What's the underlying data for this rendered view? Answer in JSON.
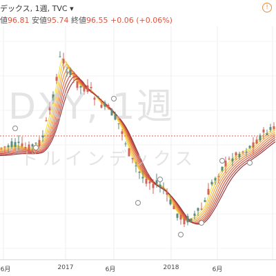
{
  "header": {
    "symbol_text": "デックス, 1週, TVC",
    "dropdown_icon": "chevron-down-icon",
    "low_label": "値",
    "open_value": "96.81",
    "low_label2": "安値",
    "low_value": "95.74",
    "close_label": "終値",
    "close_value": "96.55",
    "change": "+0.06 (+0.06%)"
  },
  "watermark": {
    "main": "DXY, 1週",
    "sub": "ドルインデックス"
  },
  "alert_icon": "info-icon",
  "chart_data": {
    "type": "candlestick",
    "x_ticks": [
      "6月",
      "2017",
      "6月",
      "2018",
      "6月"
    ],
    "current_price_line": 96.55,
    "colors": {
      "up": "#5b8a7e",
      "down": "#d2645a",
      "ribbon": [
        "#f4e04d",
        "#f3c64a",
        "#f0a948",
        "#ea8c46",
        "#df7046",
        "#cf5643",
        "#b84440",
        "#9c3638"
      ],
      "price_line": "#e05a4a"
    }
  }
}
